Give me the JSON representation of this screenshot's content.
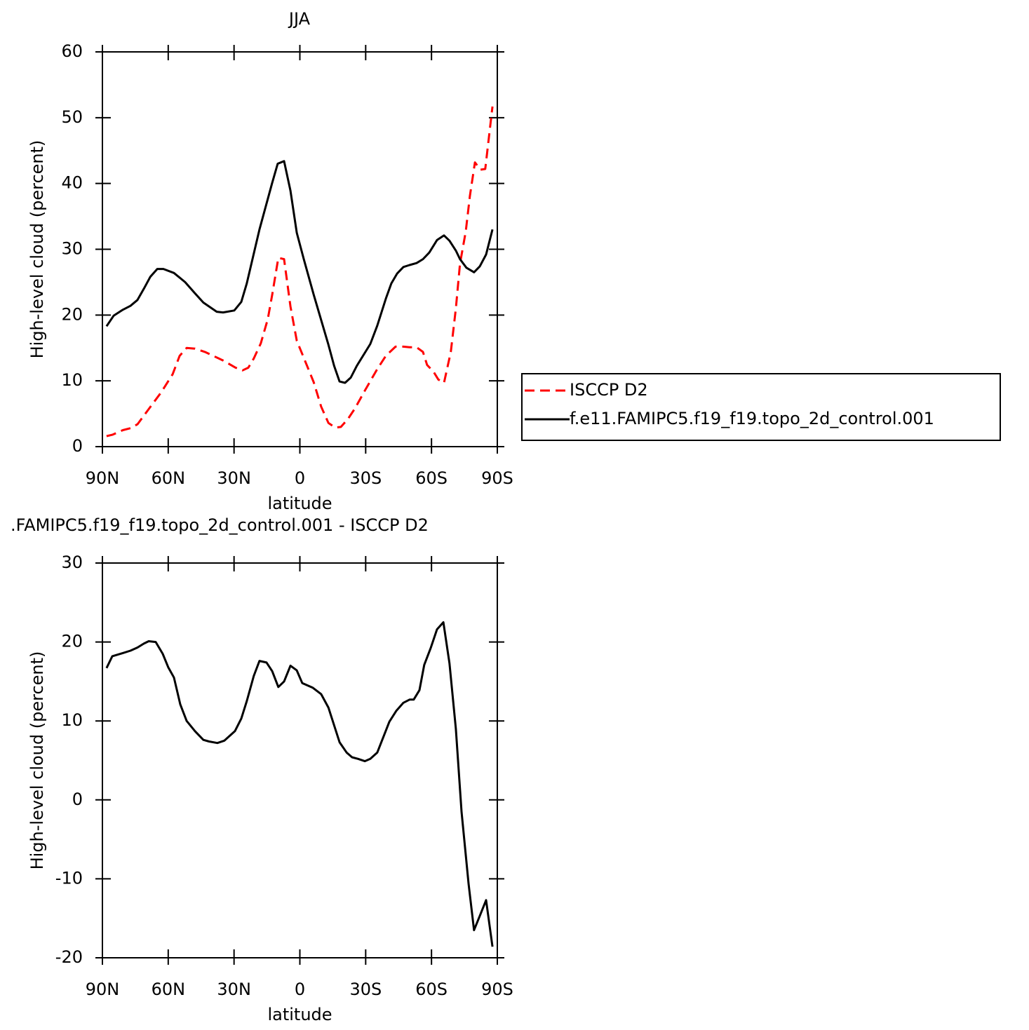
{
  "chart_data": [
    {
      "type": "line",
      "title": "JJA",
      "xlabel": "latitude",
      "ylabel": "High-level cloud (percent)",
      "xlim": [
        90,
        -90
      ],
      "ylim": [
        0,
        60
      ],
      "xticks": [
        {
          "value": 90,
          "label": "90N"
        },
        {
          "value": 60,
          "label": "60N"
        },
        {
          "value": 30,
          "label": "30N"
        },
        0,
        {
          "value": -30,
          "label": "30S"
        },
        {
          "value": -60,
          "label": "60S"
        },
        {
          "value": -90,
          "label": "90S"
        }
      ],
      "yticks": [
        0,
        10,
        20,
        30,
        40,
        50,
        60
      ],
      "legend": "right",
      "series": [
        {
          "name": "ISCCP D2",
          "color": "#ff0000",
          "linestyle": "dashed",
          "x": [
            88.1,
            85.5,
            80.7,
            77.2,
            74.0,
            68.9,
            63.1,
            58.0,
            54.8,
            51.6,
            47.8,
            43.3,
            35.0,
            29.3,
            26.1,
            23.5,
            21.0,
            17.8,
            14.6,
            12.6,
            9.8,
            7.2,
            4.3,
            1.4,
            -1.8,
            -6.3,
            -9.7,
            -13.0,
            -16.1,
            -18.7,
            -21.9,
            -25.1,
            -29.6,
            -35.3,
            -39.2,
            -43.6,
            -47.2,
            -50.0,
            -53.2,
            -56.1,
            -58.0,
            -60.9,
            -63.1,
            -65.7,
            -68.8,
            -71.1,
            -73.0,
            -75.6,
            -77.5,
            -79.8,
            -82.3,
            -84.5,
            -87.8
          ],
          "values": [
            1.6,
            1.8,
            2.5,
            2.8,
            3.4,
            5.7,
            8.3,
            11.0,
            13.8,
            15.0,
            14.9,
            14.4,
            13.1,
            12.0,
            11.6,
            12.0,
            13.4,
            15.7,
            19.4,
            23.1,
            28.7,
            28.5,
            21.3,
            16.1,
            13.5,
            9.8,
            6.1,
            3.6,
            2.9,
            3.0,
            4.2,
            5.8,
            8.5,
            11.8,
            13.8,
            15.2,
            15.2,
            15.1,
            15.1,
            14.4,
            12.4,
            11.4,
            10.2,
            9.7,
            14.4,
            21.0,
            27.8,
            32.7,
            38.1,
            43.2,
            42.1,
            42.2,
            51.7
          ]
        },
        {
          "name": "f.e11.FAMIPC5.f19_f19.topo_2d_control.001",
          "color": "#000000",
          "linestyle": "solid",
          "x": [
            88.1,
            84.9,
            80.7,
            77.2,
            74.0,
            71.1,
            68.2,
            65.0,
            62.2,
            57.4,
            52.3,
            47.8,
            44.0,
            37.9,
            35.0,
            29.9,
            26.7,
            24.2,
            18.4,
            12.7,
            10.1,
            7.2,
            4.3,
            1.4,
            -1.8,
            -6.3,
            -13.0,
            -15.6,
            -18.1,
            -20.6,
            -23.2,
            -26.0,
            -32.1,
            -35.3,
            -39.2,
            -41.7,
            -44.3,
            -47.2,
            -50.0,
            -53.2,
            -56.1,
            -59.0,
            -62.5,
            -65.7,
            -68.2,
            -71.1,
            -73.0,
            -75.9,
            -79.4,
            -82.0,
            -84.9,
            -87.8
          ],
          "values": [
            18.3,
            19.9,
            20.8,
            21.4,
            22.3,
            24.0,
            25.8,
            27.0,
            27.0,
            26.4,
            25.0,
            23.3,
            21.9,
            20.5,
            20.4,
            20.7,
            22.0,
            24.8,
            33.0,
            40.0,
            43.0,
            43.4,
            38.9,
            32.5,
            28.5,
            23.1,
            15.5,
            12.3,
            9.9,
            9.7,
            10.5,
            12.3,
            15.6,
            18.4,
            22.5,
            24.8,
            26.3,
            27.3,
            27.6,
            27.9,
            28.5,
            29.5,
            31.4,
            32.1,
            31.3,
            29.8,
            28.5,
            27.2,
            26.5,
            27.4,
            29.2,
            33.0
          ]
        }
      ]
    },
    {
      "type": "line",
      "title": ".FAMIPC5.f19_f19.topo_2d_control.001 - ISCCP D2",
      "xlabel": "latitude",
      "ylabel": "High-level cloud (percent)",
      "xlim": [
        90,
        -90
      ],
      "ylim": [
        -20,
        30
      ],
      "xticks": [
        {
          "value": 90,
          "label": "90N"
        },
        {
          "value": 60,
          "label": "60N"
        },
        {
          "value": 30,
          "label": "30N"
        },
        0,
        {
          "value": -30,
          "label": "30S"
        },
        {
          "value": -60,
          "label": "60S"
        },
        {
          "value": -90,
          "label": "90S"
        }
      ],
      "yticks": [
        -20,
        -10,
        0,
        10,
        20,
        30
      ],
      "series": [
        {
          "color": "#000000",
          "linestyle": "solid",
          "x": [
            88.1,
            85.5,
            80.7,
            77.2,
            74.0,
            71.1,
            68.9,
            65.7,
            62.5,
            60.0,
            57.4,
            54.5,
            51.6,
            47.8,
            44.0,
            41.4,
            37.6,
            34.4,
            29.6,
            26.7,
            24.2,
            21.0,
            18.4,
            15.2,
            12.6,
            9.8,
            7.2,
            4.3,
            1.4,
            -1.1,
            -5.9,
            -9.7,
            -13.0,
            -18.1,
            -21.3,
            -23.8,
            -26.4,
            -29.6,
            -32.1,
            -35.3,
            -40.8,
            -44.0,
            -47.2,
            -50.0,
            -51.9,
            -54.5,
            -56.7,
            -59.6,
            -62.5,
            -65.4,
            -68.2,
            -71.1,
            -73.7,
            -76.9,
            -79.4,
            -82.0,
            -84.9,
            -87.8
          ],
          "values": [
            16.7,
            18.2,
            18.6,
            18.9,
            19.3,
            19.8,
            20.1,
            20.0,
            18.5,
            16.8,
            15.5,
            12.1,
            10.0,
            8.7,
            7.6,
            7.4,
            7.2,
            7.5,
            8.7,
            10.3,
            12.5,
            15.7,
            17.6,
            17.4,
            16.3,
            14.3,
            15.0,
            17.0,
            16.4,
            14.8,
            14.2,
            13.4,
            11.7,
            7.3,
            6.0,
            5.4,
            5.2,
            4.9,
            5.2,
            6.0,
            9.9,
            11.3,
            12.3,
            12.7,
            12.7,
            13.9,
            17.1,
            19.2,
            21.6,
            22.5,
            17.3,
            9.0,
            -1.5,
            -10.6,
            -16.5,
            -14.7,
            -12.7,
            -18.6
          ]
        }
      ]
    }
  ]
}
